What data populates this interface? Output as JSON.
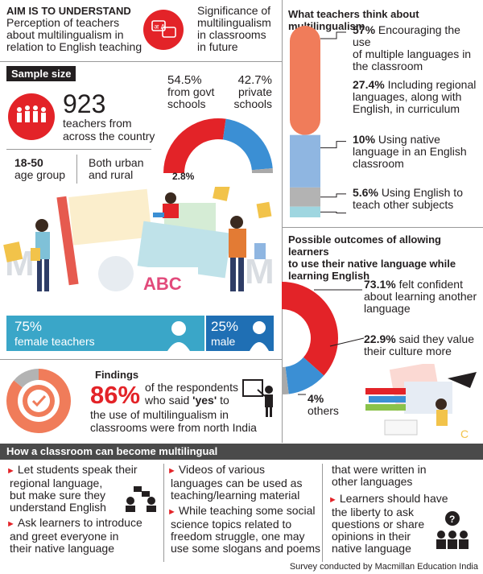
{
  "aim": {
    "tag": "AIM IS TO UNDERSTAND",
    "lines": [
      "Perception of teachers",
      "about multilingualism in",
      "relation to English teaching"
    ]
  },
  "significance": {
    "icon_text": "अ A",
    "lines": [
      "Significance of",
      "multilingualism",
      "in classrooms",
      "in future"
    ]
  },
  "sample": {
    "tag": "Sample size",
    "count": "923",
    "count_lines": [
      "teachers from",
      "across the country"
    ],
    "age_value": "18-50",
    "age_label": "age group",
    "area_lines": [
      "Both urban",
      "and rural"
    ]
  },
  "schools": {
    "govt_pct": "54.5%",
    "govt_lines": [
      "from govt",
      "schools"
    ],
    "private_pct": "42.7%",
    "private_lines": [
      "private",
      "schools"
    ],
    "other_pct": "2.8%",
    "values": [
      54.5,
      42.7,
      2.8
    ],
    "colors": [
      "#e32328",
      "#3b8fd4",
      "#a9a9a9"
    ]
  },
  "illustration": {
    "board_text": "ABC"
  },
  "gender": {
    "female_pct": "75%",
    "female_label": "female teachers",
    "male_pct": "25%",
    "male_label": "male",
    "female_color": "#3aa6c8",
    "male_color": "#1f6fb4"
  },
  "findings": {
    "title": "Findings",
    "pct": "86%",
    "line1": "of the respondents",
    "line2_pre": "who said ",
    "line2_bold": "'yes'",
    "line2_post": " to",
    "line3": "the use of multilingualism in",
    "line4": "classrooms were from north India",
    "value": 86
  },
  "teachers_think": {
    "title": "What teachers think about multilingualism",
    "items": [
      {
        "pct": "57%",
        "lines": [
          "Encouraging the use",
          "of multiple languages in",
          "the classroom"
        ],
        "value": 57,
        "color": "#f07c5a"
      },
      {
        "pct": "27.4%",
        "lines": [
          "Including regional",
          "languages, along with",
          "English, in curriculum"
        ],
        "value": 27.4,
        "color": "#8fb6e1"
      },
      {
        "pct": "10%",
        "lines": [
          "Using native",
          "language in an English",
          "classroom"
        ],
        "value": 10,
        "color": "#b3b3b3"
      },
      {
        "pct": "5.6%",
        "lines": [
          "Using English to",
          "teach other subjects"
        ],
        "value": 5.6,
        "color": "#9fd6e0"
      }
    ]
  },
  "outcomes": {
    "title_lines": [
      "Possible outcomes of allowing learners",
      "to use their native language while",
      "learning English"
    ],
    "items": [
      {
        "pct": "73.1%",
        "lines": [
          "felt confident",
          "about learning another",
          "language"
        ],
        "value": 73.1,
        "color": "#e32328"
      },
      {
        "pct": "22.9%",
        "lines": [
          "said they value",
          "their culture more"
        ],
        "value": 22.9,
        "color": "#3b8fd4"
      },
      {
        "pct": "4%",
        "lines": [
          "others"
        ],
        "value": 4,
        "color": "#a9a9a9"
      }
    ]
  },
  "classroom": {
    "title": "How a classroom can become multilingual",
    "col1": [
      [
        "Let students speak their",
        "regional language,",
        "but make sure they",
        "understand English"
      ],
      [
        "Ask learners to introduce",
        "and greet everyone in",
        "their native language"
      ]
    ],
    "col2": [
      [
        "Videos of various",
        "languages can be used as",
        "teaching/learning material"
      ],
      [
        "While teaching some social",
        "science topics related to",
        "freedom struggle, one may",
        "use some slogans and poems"
      ]
    ],
    "col3_cont": [
      "that were written in",
      "other languages"
    ],
    "col3": [
      [
        "Learners should have",
        "the liberty to ask",
        "questions or share",
        "opinions in their",
        "native language"
      ]
    ]
  },
  "footer": "Survey conducted by Macmillan Education India"
}
